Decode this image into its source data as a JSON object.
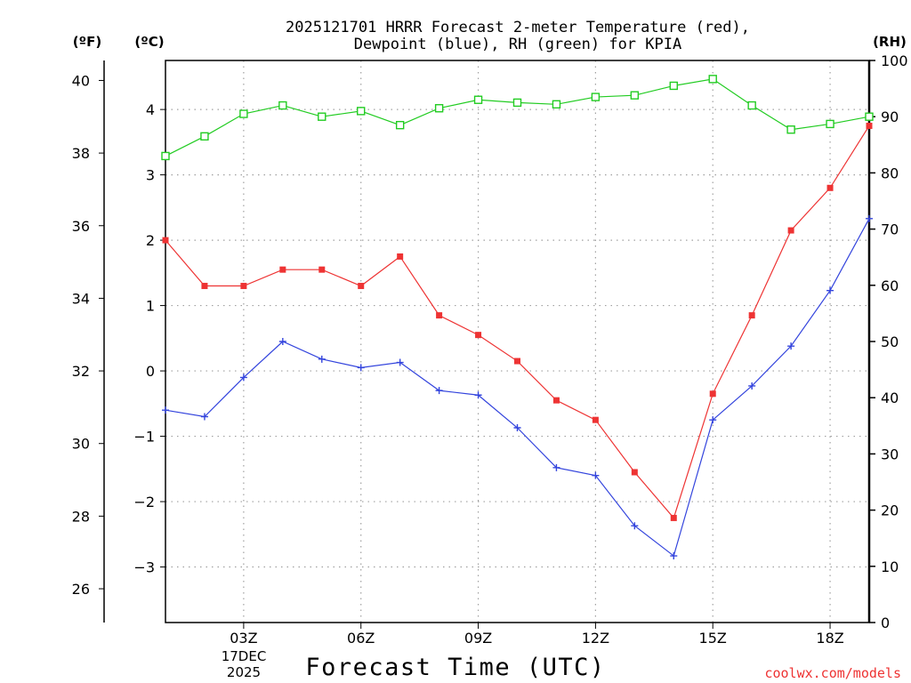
{
  "title": {
    "line1": "2025121701 HRRR Forecast 2-meter Temperature (red),",
    "line2": "Dewpoint (blue), RH (green) for KPIA"
  },
  "axes": {
    "f_label": "(ºF)",
    "c_label": "(ºC)",
    "rh_label": "(RH)",
    "x_title": "Forecast Time (UTC)",
    "date_label_1": "17DEC",
    "date_label_2": "2025"
  },
  "watermark": "coolwx.com/models",
  "colors": {
    "temperature": "#ee3333",
    "dewpoint": "#3344dd",
    "rh": "#22cc22",
    "grid": "#a0a0a0"
  },
  "chart_data": {
    "type": "line",
    "title": "2025121701 HRRR Forecast 2-meter Temperature (red), Dewpoint (blue), RH (green) for KPIA",
    "xlabel": "Forecast Time (UTC)",
    "x": [
      1,
      2,
      3,
      4,
      5,
      6,
      7,
      8,
      9,
      10,
      11,
      12,
      13,
      14,
      15,
      16,
      17,
      18,
      19
    ],
    "x_unit": "hour UTC",
    "xlim": [
      1,
      19
    ],
    "xticks": [
      3,
      6,
      9,
      12,
      15,
      18
    ],
    "xtick_labels": [
      "03Z",
      "06Z",
      "09Z",
      "12Z",
      "15Z",
      "18Z"
    ],
    "ylabel_left_c": "(ºC)",
    "ylim_c": [
      -3.85,
      4.75
    ],
    "yticks_c": [
      -3,
      -2,
      -1,
      0,
      1,
      2,
      3,
      4
    ],
    "yticks_f": [
      26,
      28,
      30,
      32,
      34,
      36,
      38,
      40
    ],
    "ylim_rh": [
      0,
      100
    ],
    "yticks_rh": [
      0,
      10,
      20,
      30,
      40,
      50,
      60,
      70,
      80,
      90,
      100
    ],
    "series": [
      {
        "name": "Temperature",
        "unit": "C",
        "marker": "filled-square",
        "values": [
          2.0,
          1.3,
          1.3,
          1.55,
          1.55,
          1.3,
          1.75,
          0.85,
          0.55,
          0.15,
          -0.45,
          -0.75,
          -1.55,
          -2.25,
          -0.35,
          0.85,
          2.15,
          2.8,
          3.75
        ]
      },
      {
        "name": "Dewpoint",
        "unit": "C",
        "marker": "plus",
        "values": [
          -0.6,
          -0.7,
          -0.1,
          0.45,
          0.18,
          0.05,
          0.13,
          -0.3,
          -0.37,
          -0.87,
          -1.48,
          -1.6,
          -2.37,
          -2.83,
          -0.75,
          -0.23,
          0.38,
          1.23,
          2.33
        ]
      },
      {
        "name": "RH",
        "unit": "%",
        "marker": "open-square",
        "values": [
          83,
          86.5,
          90.5,
          92,
          90,
          91,
          88.5,
          91.5,
          93,
          92.5,
          92.2,
          93.5,
          93.8,
          95.5,
          96.7,
          92,
          87.7,
          88.7,
          90
        ]
      }
    ]
  }
}
